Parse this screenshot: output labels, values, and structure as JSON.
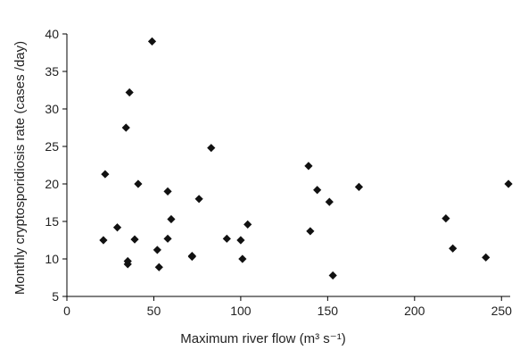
{
  "chart_data": {
    "type": "scatter",
    "title": "",
    "xlabel": "Maximum river flow (m³ s⁻¹)",
    "ylabel": "Monthly cryptosporidiosis rate (cases /day)",
    "xlim": [
      0,
      255
    ],
    "ylim": [
      5,
      40
    ],
    "x_ticks": [
      0,
      50,
      100,
      150,
      200,
      250
    ],
    "y_ticks": [
      5,
      10,
      15,
      20,
      25,
      30,
      35,
      40
    ],
    "grid": false,
    "legend": "none",
    "marker": "diamond",
    "color": "#111111",
    "points": [
      {
        "x": 21,
        "y": 12.5
      },
      {
        "x": 22,
        "y": 21.3
      },
      {
        "x": 29,
        "y": 14.2
      },
      {
        "x": 34,
        "y": 27.5
      },
      {
        "x": 35,
        "y": 9.3
      },
      {
        "x": 35,
        "y": 9.7
      },
      {
        "x": 36,
        "y": 32.2
      },
      {
        "x": 39,
        "y": 12.6
      },
      {
        "x": 41,
        "y": 20.0
      },
      {
        "x": 49,
        "y": 39.0
      },
      {
        "x": 52,
        "y": 11.2
      },
      {
        "x": 53,
        "y": 8.9
      },
      {
        "x": 58,
        "y": 12.7
      },
      {
        "x": 58,
        "y": 19.0
      },
      {
        "x": 60,
        "y": 15.3
      },
      {
        "x": 72,
        "y": 10.4
      },
      {
        "x": 72,
        "y": 10.3
      },
      {
        "x": 76,
        "y": 18.0
      },
      {
        "x": 83,
        "y": 24.8
      },
      {
        "x": 92,
        "y": 12.7
      },
      {
        "x": 100,
        "y": 12.5
      },
      {
        "x": 101,
        "y": 10.0
      },
      {
        "x": 104,
        "y": 14.6
      },
      {
        "x": 139,
        "y": 22.4
      },
      {
        "x": 140,
        "y": 13.7
      },
      {
        "x": 144,
        "y": 19.2
      },
      {
        "x": 151,
        "y": 17.6
      },
      {
        "x": 153,
        "y": 7.8
      },
      {
        "x": 168,
        "y": 19.6
      },
      {
        "x": 218,
        "y": 15.4
      },
      {
        "x": 222,
        "y": 11.4
      },
      {
        "x": 241,
        "y": 10.2
      },
      {
        "x": 254,
        "y": 20.0
      }
    ]
  }
}
